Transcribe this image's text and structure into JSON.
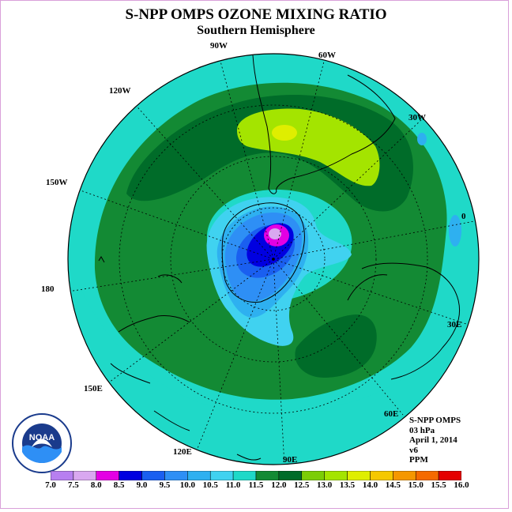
{
  "header": {
    "title": "S-NPP OMPS OZONE MIXING RATIO",
    "subtitle": "Southern Hemisphere"
  },
  "longitude_labels": {
    "w90": "90W",
    "w60": "60W",
    "w30": "30W",
    "w120": "120W",
    "w150": "150W",
    "zero": "0",
    "w180": "180",
    "e30": "30E",
    "e150": "150E",
    "e60": "60E",
    "e120": "120E",
    "e90": "90E"
  },
  "info": {
    "instrument": "S-NPP OMPS",
    "level": "03 hPa",
    "date": "April 1, 2014",
    "version": "v6",
    "units": "PPM"
  },
  "logo": {
    "text": "NOAA"
  },
  "colorbar": {
    "labels": [
      "7.0",
      "7.5",
      "8.0",
      "8.5",
      "9.0",
      "9.5",
      "10.0",
      "10.5",
      "11.0",
      "11.5",
      "12.0",
      "12.5",
      "13.0",
      "13.5",
      "14.0",
      "14.5",
      "15.0",
      "15.5",
      "16.0"
    ],
    "colors": [
      "#b77ff0",
      "#d9a8f0",
      "#e400e4",
      "#0000e0",
      "#1a5ff0",
      "#2e8ff5",
      "#2eb0f0",
      "#40d2f0",
      "#1fd9c8",
      "#138a34",
      "#006c29",
      "#7ccd06",
      "#a4e400",
      "#dfee00",
      "#f5c800",
      "#f59700",
      "#f56a00",
      "#e40000",
      "#8b5a3c"
    ]
  }
}
